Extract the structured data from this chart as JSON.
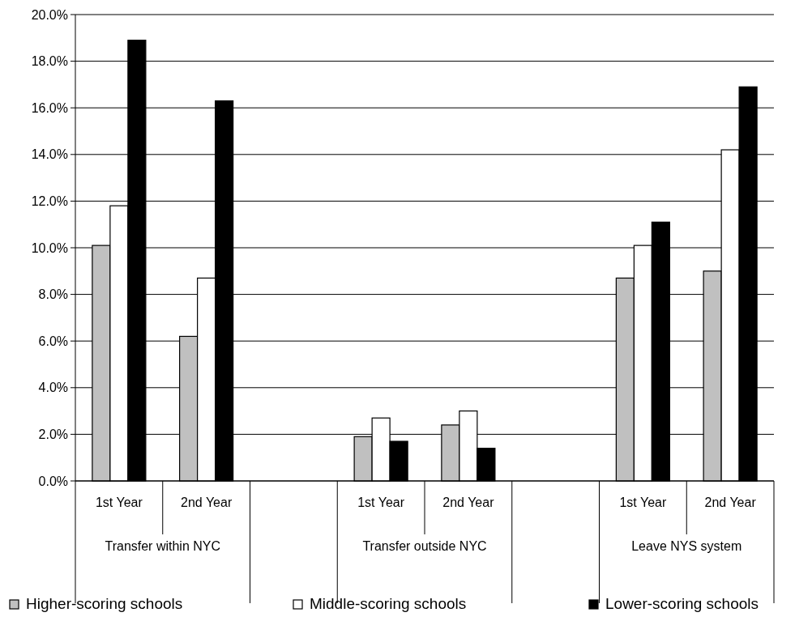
{
  "chart_data": {
    "type": "bar",
    "categories": [
      "1st Year",
      "2nd Year",
      null,
      "1st Year",
      "2nd Year",
      null,
      "1st Year",
      "2nd Year"
    ],
    "series": [
      {
        "name": "Higher-scoring schools",
        "color": "#c0c0c0",
        "values": [
          10.1,
          6.2,
          null,
          1.9,
          2.4,
          null,
          8.7,
          9.0
        ]
      },
      {
        "name": "Middle-scoring schools",
        "color": "#ffffff",
        "values": [
          11.8,
          8.7,
          null,
          2.7,
          3.0,
          null,
          10.1,
          14.2
        ]
      },
      {
        "name": "Lower-scoring schools",
        "color": "#000000",
        "values": [
          18.9,
          16.3,
          null,
          1.7,
          1.4,
          null,
          11.1,
          16.9
        ]
      }
    ],
    "annotations": [
      "Transfer within NYC",
      "Transfer outside NYC",
      "Leave NYS system"
    ],
    "ylim": [
      0,
      20
    ],
    "yticks": [
      {
        "value": 0,
        "label": "0.0%"
      },
      {
        "value": 2,
        "label": "2.0%"
      },
      {
        "value": 4,
        "label": "4.0%"
      },
      {
        "value": 6,
        "label": "6.0%"
      },
      {
        "value": 8,
        "label": "8.0%"
      },
      {
        "value": 10,
        "label": "10.0%"
      },
      {
        "value": 12,
        "label": "12.0%"
      },
      {
        "value": 14,
        "label": "14.0%"
      },
      {
        "value": 16,
        "label": "16.0%"
      },
      {
        "value": 18,
        "label": "18.0%"
      },
      {
        "value": 20,
        "label": "20.0%"
      }
    ],
    "grid": "y",
    "legend": "bottom"
  }
}
